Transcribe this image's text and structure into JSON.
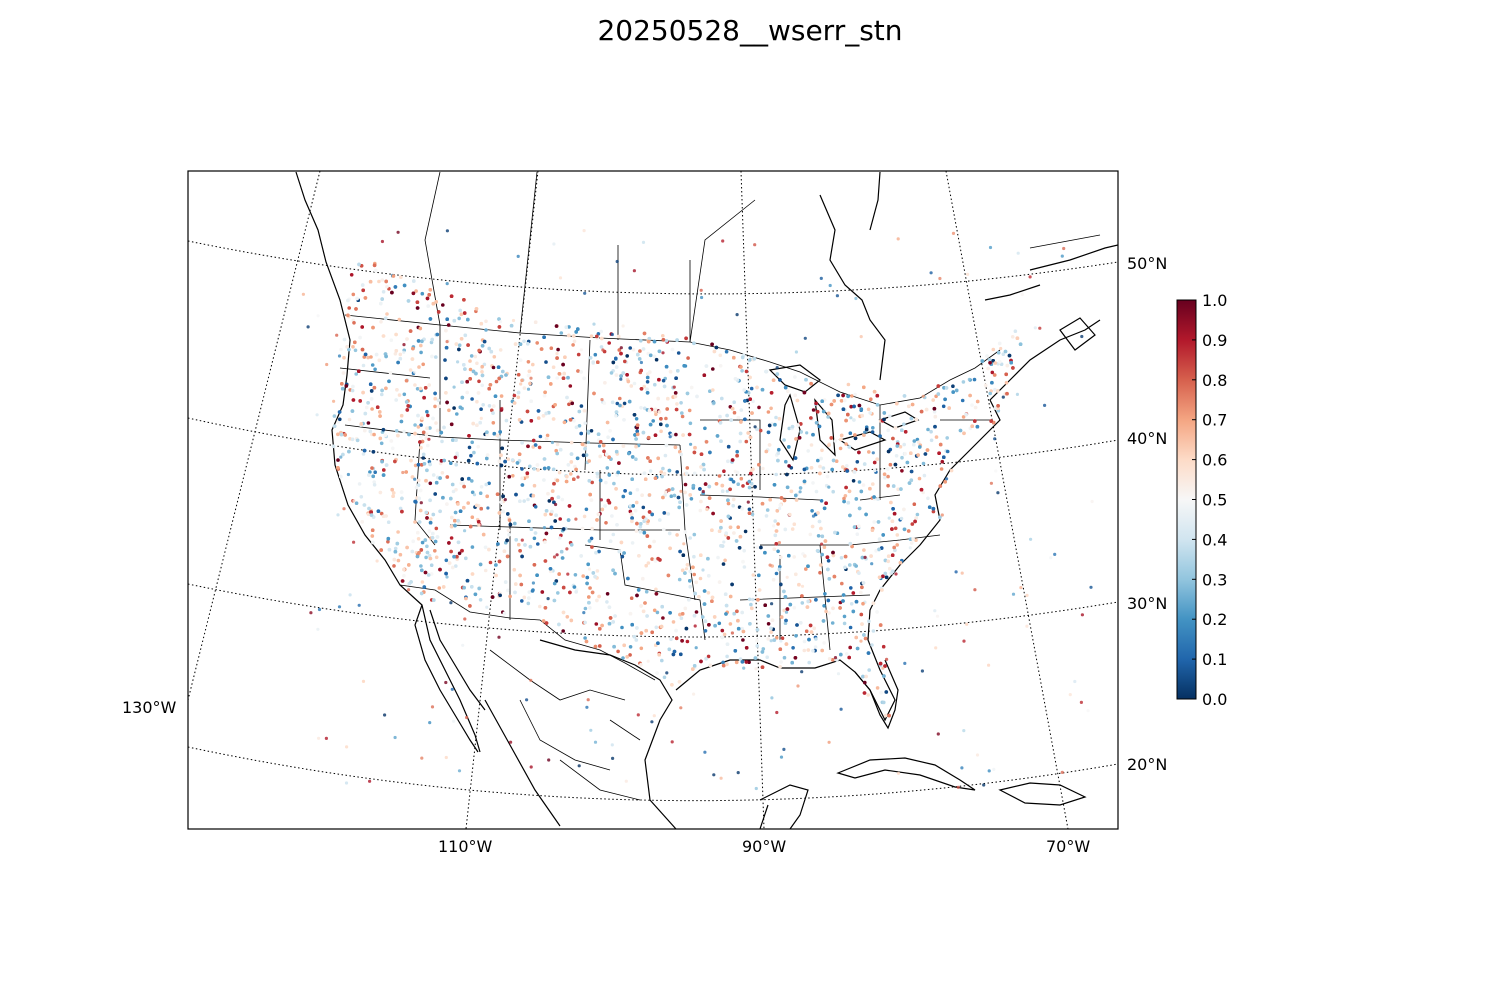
{
  "title": "20250528__wserr_stn",
  "map": {
    "projection": "lambert conformal conic",
    "region": "CONUS",
    "lon_labels": [
      "130°W",
      "110°W",
      "90°W",
      "70°W"
    ],
    "lat_labels": [
      "50°N",
      "40°N",
      "30°N",
      "20°N"
    ],
    "graticule_style": "dotted"
  },
  "colorbar": {
    "colormap": "RdBu_r",
    "min": 0.0,
    "max": 1.0,
    "ticks": [
      "0.0",
      "0.1",
      "0.2",
      "0.3",
      "0.4",
      "0.5",
      "0.6",
      "0.7",
      "0.8",
      "0.9",
      "1.0"
    ],
    "colors": [
      "#053061",
      "#2166ac",
      "#4393c3",
      "#92c5de",
      "#d1e5f0",
      "#f7f7f7",
      "#fddbc7",
      "#f4a582",
      "#d6604d",
      "#b2182b",
      "#67001f"
    ]
  },
  "stations": {
    "description_note": "",
    "marker": "small filled circle",
    "value_range": [
      0.0,
      1.0
    ]
  }
}
